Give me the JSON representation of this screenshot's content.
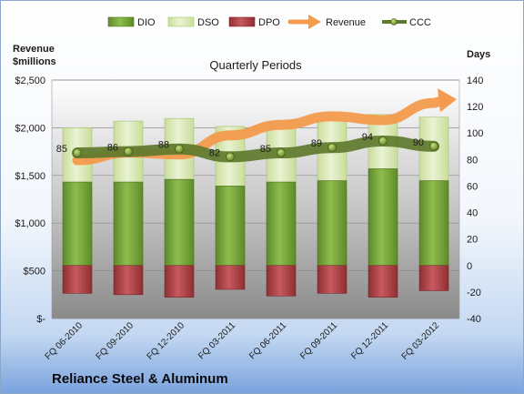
{
  "chart_data": {
    "type": "bar",
    "title": "Quarterly Periods",
    "footer": "Reliance Steel & Aluminum",
    "categories": [
      "FQ 06-2010",
      "FQ 09-2010",
      "FQ 12-2010",
      "FQ 03-2011",
      "FQ 06-2011",
      "FQ 09-2011",
      "FQ 12-2011",
      "FQ 03-2012"
    ],
    "left_axis": {
      "label_line1": "Revenue",
      "label_line2": "$millions",
      "ylim": [
        0,
        2500
      ],
      "ticks": [
        0,
        500,
        1000,
        1500,
        2000,
        2500
      ],
      "tick_labels": [
        "$-",
        "$500",
        "$1,000",
        "$1,500",
        "$2,000",
        "$2,500"
      ]
    },
    "right_axis": {
      "label": "Days",
      "ylim": [
        -40,
        140
      ],
      "ticks": [
        -40,
        -20,
        0,
        20,
        40,
        60,
        80,
        100,
        120,
        140
      ]
    },
    "series": [
      {
        "name": "DIO",
        "type": "stacked-bar",
        "axis": "right",
        "color": "#7aa33c",
        "values": [
          63,
          63,
          65,
          60,
          63,
          64,
          73,
          64
        ]
      },
      {
        "name": "DSO",
        "type": "stacked-bar",
        "axis": "right",
        "color": "#d8e8b4",
        "values": [
          41,
          46,
          46,
          45,
          42,
          46,
          41,
          48
        ]
      },
      {
        "name": "DPO",
        "type": "bar",
        "axis": "right",
        "color": "#b84a4e",
        "values": [
          -21,
          -22,
          -24,
          -18,
          -23,
          -21,
          -24,
          -19
        ]
      },
      {
        "name": "Revenue",
        "type": "arrow",
        "axis": "left",
        "color": "#f39a4d",
        "values": [
          1660,
          1740,
          1720,
          1920,
          2030,
          2120,
          2080,
          2260
        ]
      },
      {
        "name": "CCC",
        "type": "line",
        "axis": "right",
        "color": "#5e7a2c",
        "values": [
          85,
          86,
          88,
          82,
          85,
          89,
          94,
          90
        ],
        "labels": [
          "85",
          "86",
          "88",
          "82",
          "85",
          "89",
          "94",
          "90"
        ]
      }
    ]
  }
}
